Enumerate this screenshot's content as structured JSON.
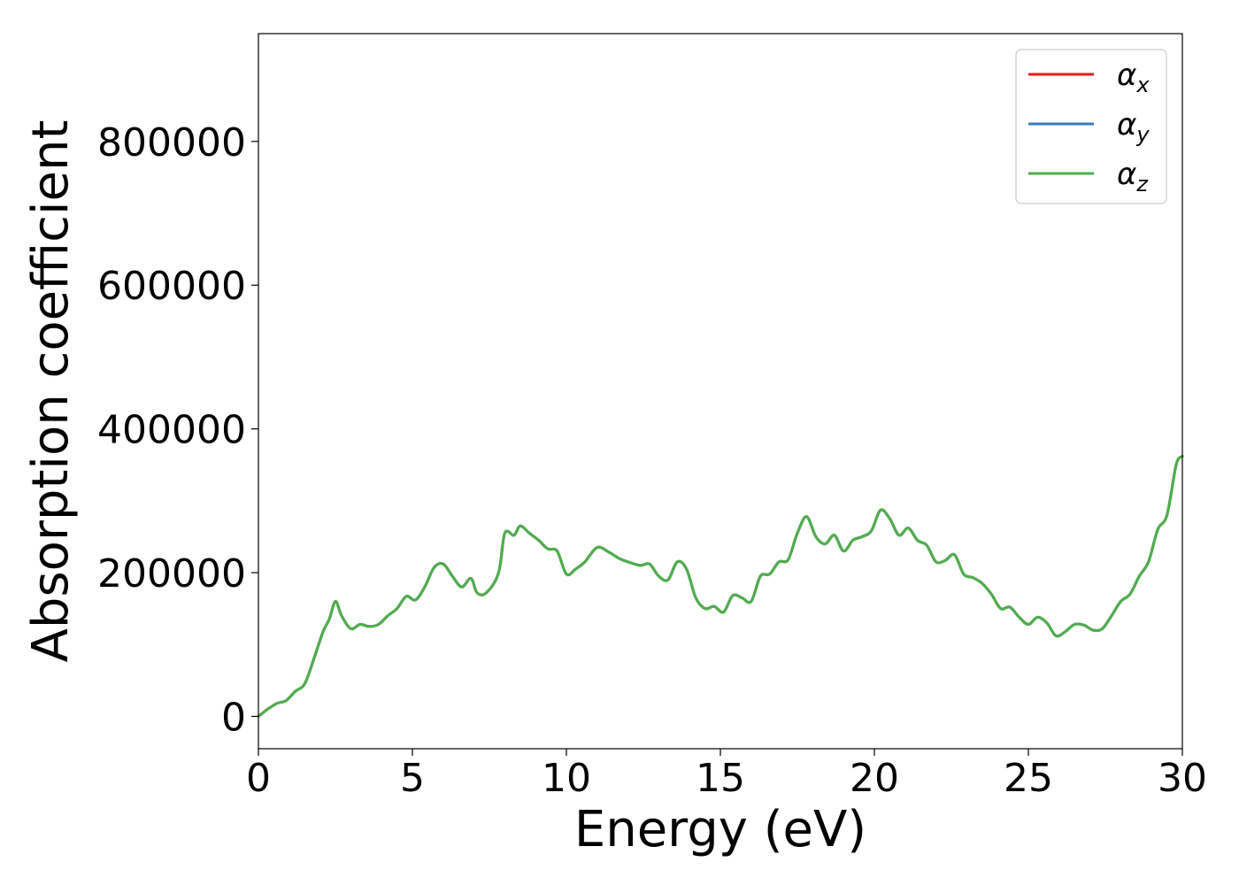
{
  "chart_data": {
    "type": "line",
    "title": "",
    "xlabel": "Energy (eV)",
    "ylabel": "Absorption coefficient",
    "xlim": [
      0,
      30
    ],
    "ylim": [
      -45000,
      950000
    ],
    "xticks": [
      "0",
      "5",
      "10",
      "15",
      "20",
      "25",
      "30"
    ],
    "yticks": [
      "0",
      "200000",
      "400000",
      "600000",
      "800000"
    ],
    "grid": false,
    "legend_position": "top-right",
    "legend": [
      {
        "symbol": "α",
        "sub": "x",
        "color": "#e41a1c"
      },
      {
        "symbol": "α",
        "sub": "y",
        "color": "#377eb8"
      },
      {
        "symbol": "α",
        "sub": "z",
        "color": "#4daf4a"
      }
    ],
    "x": [
      0,
      0.3,
      0.6,
      0.9,
      1.2,
      1.5,
      1.8,
      2.1,
      2.3,
      2.5,
      2.7,
      3.0,
      3.3,
      3.6,
      3.9,
      4.2,
      4.5,
      4.8,
      5.1,
      5.4,
      5.7,
      6.0,
      6.3,
      6.6,
      6.9,
      7.1,
      7.4,
      7.8,
      8.0,
      8.3,
      8.5,
      8.8,
      9.1,
      9.4,
      9.7,
      10.0,
      10.3,
      10.6,
      11.0,
      11.4,
      11.7,
      12.0,
      12.4,
      12.7,
      13.0,
      13.3,
      13.6,
      13.9,
      14.2,
      14.5,
      14.8,
      15.1,
      15.4,
      15.7,
      16.0,
      16.3,
      16.6,
      16.9,
      17.2,
      17.5,
      17.8,
      18.1,
      18.4,
      18.7,
      19.0,
      19.3,
      19.6,
      19.9,
      20.2,
      20.5,
      20.8,
      21.1,
      21.4,
      21.7,
      22.0,
      22.3,
      22.6,
      22.9,
      23.2,
      23.5,
      23.8,
      24.1,
      24.4,
      24.7,
      25.0,
      25.3,
      25.6,
      25.9,
      26.2,
      26.5,
      26.8,
      27.1,
      27.4,
      27.7,
      28.0,
      28.3,
      28.6,
      28.9,
      29.2,
      29.5,
      29.8,
      30.0
    ],
    "series": [
      {
        "name": "αx",
        "color": "#e41a1c",
        "values": [
          0,
          10000,
          18000,
          22000,
          35000,
          45000,
          80000,
          118000,
          135000,
          160000,
          140000,
          122000,
          128000,
          125000,
          128000,
          140000,
          150000,
          167000,
          162000,
          180000,
          207000,
          212000,
          195000,
          180000,
          192000,
          172000,
          172000,
          200000,
          255000,
          252000,
          265000,
          255000,
          245000,
          233000,
          230000,
          198000,
          205000,
          215000,
          235000,
          228000,
          220000,
          215000,
          210000,
          212000,
          195000,
          190000,
          215000,
          205000,
          165000,
          150000,
          153000,
          145000,
          168000,
          165000,
          160000,
          195000,
          198000,
          215000,
          218000,
          255000,
          278000,
          250000,
          240000,
          252000,
          230000,
          245000,
          250000,
          258000,
          287000,
          275000,
          252000,
          262000,
          245000,
          238000,
          215000,
          217000,
          225000,
          198000,
          193000,
          185000,
          170000,
          150000,
          152000,
          138000,
          128000,
          138000,
          130000,
          112000,
          118000,
          128000,
          127000,
          120000,
          122000,
          140000,
          160000,
          170000,
          195000,
          215000,
          260000,
          280000,
          350000,
          362000
        ]
      },
      {
        "name": "αy",
        "color": "#377eb8",
        "values": [
          0,
          10000,
          18000,
          22000,
          35000,
          45000,
          80000,
          118000,
          135000,
          160000,
          140000,
          122000,
          128000,
          125000,
          128000,
          140000,
          150000,
          167000,
          162000,
          180000,
          207000,
          212000,
          195000,
          180000,
          192000,
          172000,
          172000,
          200000,
          255000,
          252000,
          265000,
          255000,
          245000,
          233000,
          230000,
          198000,
          205000,
          215000,
          235000,
          228000,
          220000,
          215000,
          210000,
          212000,
          195000,
          190000,
          215000,
          205000,
          165000,
          150000,
          153000,
          145000,
          168000,
          165000,
          160000,
          195000,
          198000,
          215000,
          218000,
          255000,
          278000,
          250000,
          240000,
          252000,
          230000,
          245000,
          250000,
          258000,
          287000,
          275000,
          252000,
          262000,
          245000,
          238000,
          215000,
          217000,
          225000,
          198000,
          193000,
          185000,
          170000,
          150000,
          152000,
          138000,
          128000,
          138000,
          130000,
          112000,
          118000,
          128000,
          127000,
          120000,
          122000,
          140000,
          160000,
          170000,
          195000,
          215000,
          260000,
          280000,
          350000,
          362000
        ]
      },
      {
        "name": "αz",
        "color": "#4daf4a",
        "values": [
          0,
          10000,
          18000,
          22000,
          35000,
          45000,
          80000,
          118000,
          135000,
          160000,
          140000,
          122000,
          128000,
          125000,
          128000,
          140000,
          150000,
          167000,
          162000,
          180000,
          207000,
          212000,
          195000,
          180000,
          192000,
          172000,
          172000,
          200000,
          255000,
          252000,
          265000,
          255000,
          245000,
          233000,
          230000,
          198000,
          205000,
          215000,
          235000,
          228000,
          220000,
          215000,
          210000,
          212000,
          195000,
          190000,
          215000,
          205000,
          165000,
          150000,
          153000,
          145000,
          168000,
          165000,
          160000,
          195000,
          198000,
          215000,
          218000,
          255000,
          278000,
          250000,
          240000,
          252000,
          230000,
          245000,
          250000,
          258000,
          287000,
          275000,
          252000,
          262000,
          245000,
          238000,
          215000,
          217000,
          225000,
          198000,
          193000,
          185000,
          170000,
          150000,
          152000,
          138000,
          128000,
          138000,
          130000,
          112000,
          118000,
          128000,
          127000,
          120000,
          122000,
          140000,
          160000,
          170000,
          195000,
          215000,
          260000,
          280000,
          350000,
          362000
        ]
      }
    ]
  }
}
